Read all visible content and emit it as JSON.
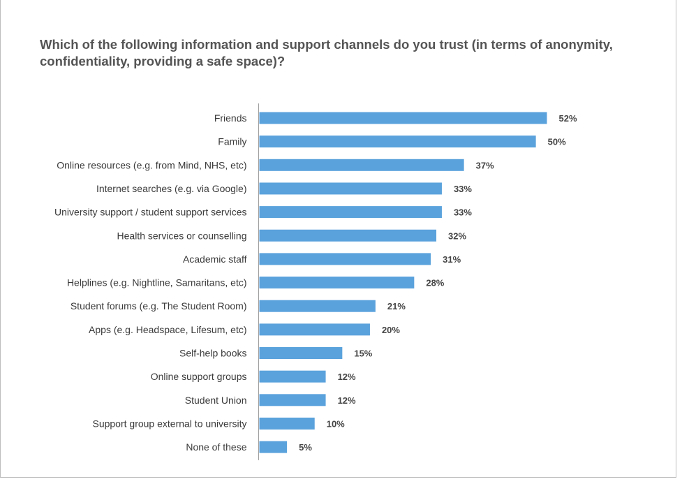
{
  "chart_data": {
    "type": "bar",
    "orientation": "horizontal",
    "title": "Which of the following information and support channels do you trust (in terms of anonymity, confidentiality, providing a safe space)?",
    "categories": [
      "Friends",
      "Family",
      "Online resources (e.g. from Mind, NHS, etc)",
      "Internet searches (e.g. via Google)",
      "University support / student support services",
      "Health services or counselling",
      "Academic staff",
      "Helplines (e.g. Nightline, Samaritans, etc)",
      "Student forums (e.g. The Student Room)",
      "Apps (e.g. Headspace, Lifesum, etc)",
      "Self-help books",
      "Online support groups",
      "Student Union",
      "Support group external to university",
      "None of these"
    ],
    "values": [
      52,
      50,
      37,
      33,
      33,
      32,
      31,
      28,
      21,
      20,
      15,
      12,
      12,
      10,
      5
    ],
    "value_labels": [
      "52%",
      "50%",
      "37%",
      "33%",
      "33%",
      "32%",
      "31%",
      "28%",
      "21%",
      "20%",
      "15%",
      "12%",
      "12%",
      "10%",
      "5%"
    ],
    "unit": "%",
    "xlim": [
      0,
      52
    ],
    "bar_color": "#5aa2dc",
    "axis_color": "#9e9e9e",
    "grid": false,
    "legend": "none"
  }
}
